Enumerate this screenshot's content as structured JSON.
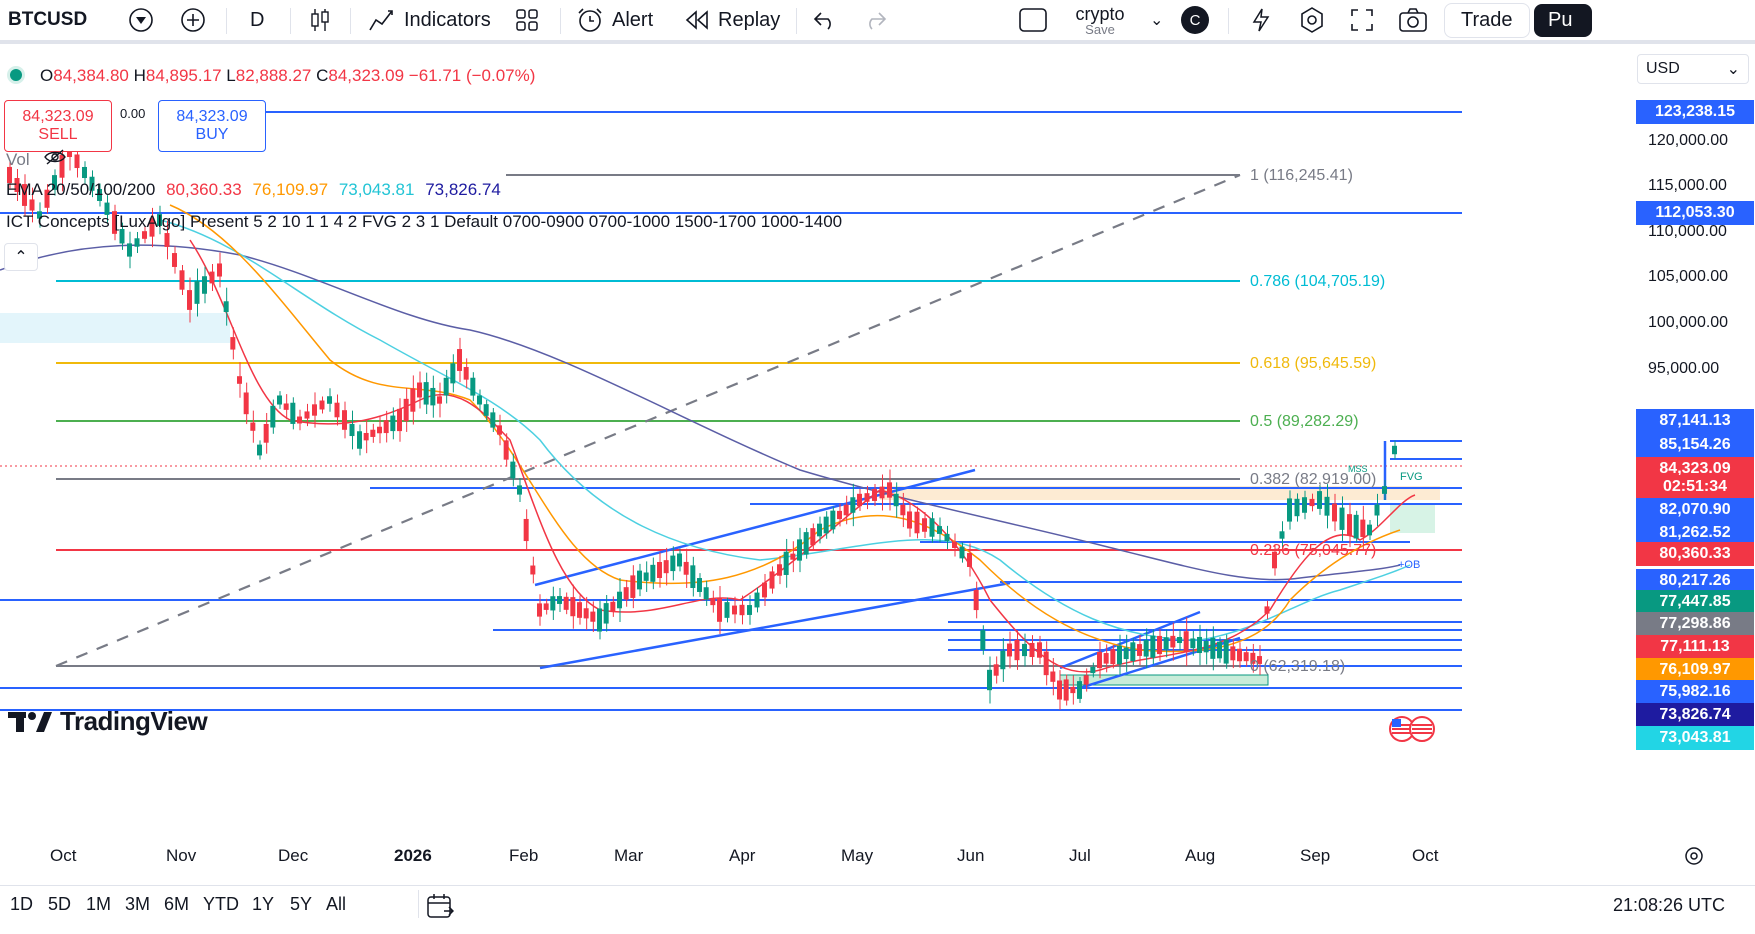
{
  "toolbar": {
    "symbol": "BTCUSD",
    "interval": "D",
    "indicators_label": "Indicators",
    "alert_label": "Alert",
    "replay_label": "Replay",
    "layout_name": "crypto",
    "save_label": "Save",
    "avatar_letter": "C",
    "trade_label": "Trade",
    "publish_label": "Pu"
  },
  "legend": {
    "open_label": "O",
    "open": "84,384.80",
    "high_label": "H",
    "high": "84,895.17",
    "low_label": "L",
    "low": "82,888.27",
    "close_label": "C",
    "close": "84,323.09",
    "change": "−61.71 (−0.07%)"
  },
  "trade": {
    "sell_price": "84,323.09",
    "sell_label": "SELL",
    "spread": "0.00",
    "buy_price": "84,323.09",
    "buy_label": "BUY"
  },
  "indicators": {
    "vol_label": "Vol",
    "ema_label": "EMA 20/50/100/200",
    "ema20": "80,360.33",
    "ema50": "76,109.97",
    "ema100": "73,043.81",
    "ema200": "73,826.74",
    "ict_label": "ICT Concepts [LuxAlgo] Present 5 2 10 1 1 4 2 FVG 2 3 1 Default 0700-0900 0700-1000 1500-1700 1000-1400"
  },
  "currency": "USD",
  "axis_prices": [
    "120,000.00",
    "115,000.00",
    "110,000.00",
    "105,000.00",
    "100,000.00",
    "95,000.00"
  ],
  "price_tags": [
    {
      "label": "123,238.15",
      "color": "#2962ff"
    },
    {
      "label": "112,053.30",
      "color": "#2962ff"
    },
    {
      "label": "87,141.13",
      "color": "#2962ff"
    },
    {
      "label": "85,154.26",
      "color": "#2962ff"
    },
    {
      "label": "84,323.09",
      "color": "#f23645"
    },
    {
      "label": "02:51:34",
      "color": "#f23645"
    },
    {
      "label": "82,070.90",
      "color": "#2962ff"
    },
    {
      "label": "81,262.52",
      "color": "#2962ff"
    },
    {
      "label": "80,360.33",
      "color": "#f23645"
    },
    {
      "label": "80,217.26",
      "color": "#2962ff"
    },
    {
      "label": "77,447.85",
      "color": "#089981"
    },
    {
      "label": "77,298.86",
      "color": "#787b86"
    },
    {
      "label": "77,111.13",
      "color": "#f23645"
    },
    {
      "label": "76,109.97",
      "color": "#ff9800"
    },
    {
      "label": "75,982.16",
      "color": "#2962ff"
    },
    {
      "label": "73,826.74",
      "color": "#1e1ba0"
    },
    {
      "label": "73,043.81",
      "color": "#22d5e5"
    }
  ],
  "fib_levels": [
    {
      "label": "1 (116,245.41)",
      "color": "#787b86"
    },
    {
      "label": "0.786 (104,705.19)",
      "color": "#00bcd4"
    },
    {
      "label": "0.618 (95,645.59)",
      "color": "#f0b90b"
    },
    {
      "label": "0.5 (89,282.29)",
      "color": "#4caf50"
    },
    {
      "label": "0.382 (82,919.00)",
      "color": "#787b86"
    },
    {
      "label": "0.236 (75,045.77)",
      "color": "#f23645"
    },
    {
      "label": "0 (62,319.18)",
      "color": "#787b86"
    }
  ],
  "chart_labels": {
    "ob_label": "+OB",
    "fvg_label": "FVG",
    "mss_label": "MSS"
  },
  "time_axis": [
    "Oct",
    "Nov",
    "Dec",
    "2026",
    "Feb",
    "Mar",
    "Apr",
    "May",
    "Jun",
    "Jul",
    "Aug",
    "Sep",
    "Oct"
  ],
  "ranges": [
    "1D",
    "5D",
    "1M",
    "3M",
    "6M",
    "YTD",
    "1Y",
    "5Y",
    "All"
  ],
  "clock": "21:08:26 UTC",
  "logo_text": "TradingView"
}
